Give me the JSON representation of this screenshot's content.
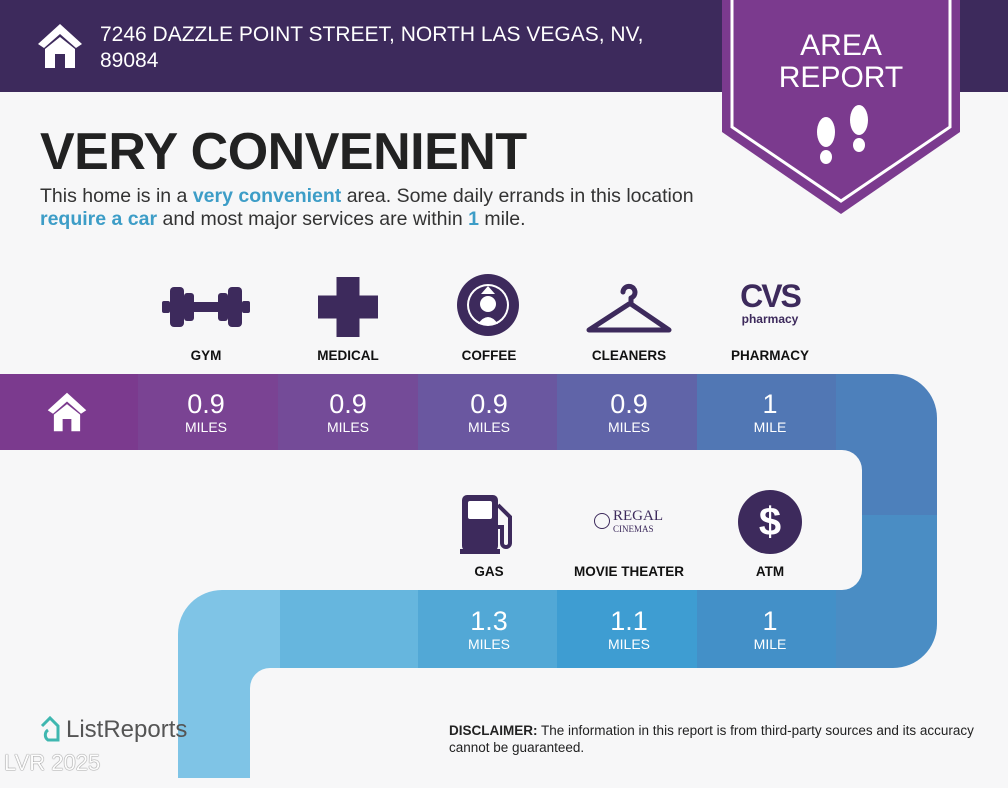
{
  "header": {
    "address": "7246 DAZZLE POINT STREET, NORTH LAS VEGAS, NV, 89084",
    "badge_line1": "AREA",
    "badge_line2": "REPORT"
  },
  "rating": {
    "title": "VERY CONVENIENT",
    "desc": {
      "p1": "This home is in a ",
      "h1": "very convenient",
      "p2": " area. Some daily errands in this location ",
      "h2": "require a car",
      "p3": " and most major services are within ",
      "h3": "1",
      "p4": " mile."
    }
  },
  "amenities": [
    {
      "label": "GYM",
      "value": "0.9",
      "unit": "MILES",
      "icon": "dumbbell-icon"
    },
    {
      "label": "MEDICAL",
      "value": "0.9",
      "unit": "MILES",
      "icon": "medical-cross-icon"
    },
    {
      "label": "COFFEE",
      "value": "0.9",
      "unit": "MILES",
      "icon": "starbucks-logo"
    },
    {
      "label": "CLEANERS",
      "value": "0.9",
      "unit": "MILES",
      "icon": "hanger-icon"
    },
    {
      "label": "PHARMACY",
      "value": "1",
      "unit": "MILE",
      "icon": "cvs-logo",
      "logo_text": "CVS",
      "logo_sub": "pharmacy"
    },
    {
      "label": "GAS",
      "value": "1.3",
      "unit": "MILES",
      "icon": "gas-pump-icon"
    },
    {
      "label": "MOVIE THEATER",
      "value": "1.1",
      "unit": "MILES",
      "icon": "regal-logo",
      "logo_text": "REGAL",
      "logo_sub": "CINEMAS"
    },
    {
      "label": "ATM",
      "value": "1",
      "unit": "MILE",
      "icon": "dollar-icon",
      "logo_text": "$"
    }
  ],
  "footer": {
    "brand": "ListReports",
    "disclaimer_label": "DISCLAIMER:",
    "disclaimer": " The information in this report is from third-party sources and its accuracy cannot be guaranteed.",
    "watermark": "LVR 2025"
  },
  "colors": {
    "header": "#3d2a5c",
    "badge": "#7b3a8e",
    "accent": "#3d9dc7",
    "icon": "#3d2a5c"
  }
}
